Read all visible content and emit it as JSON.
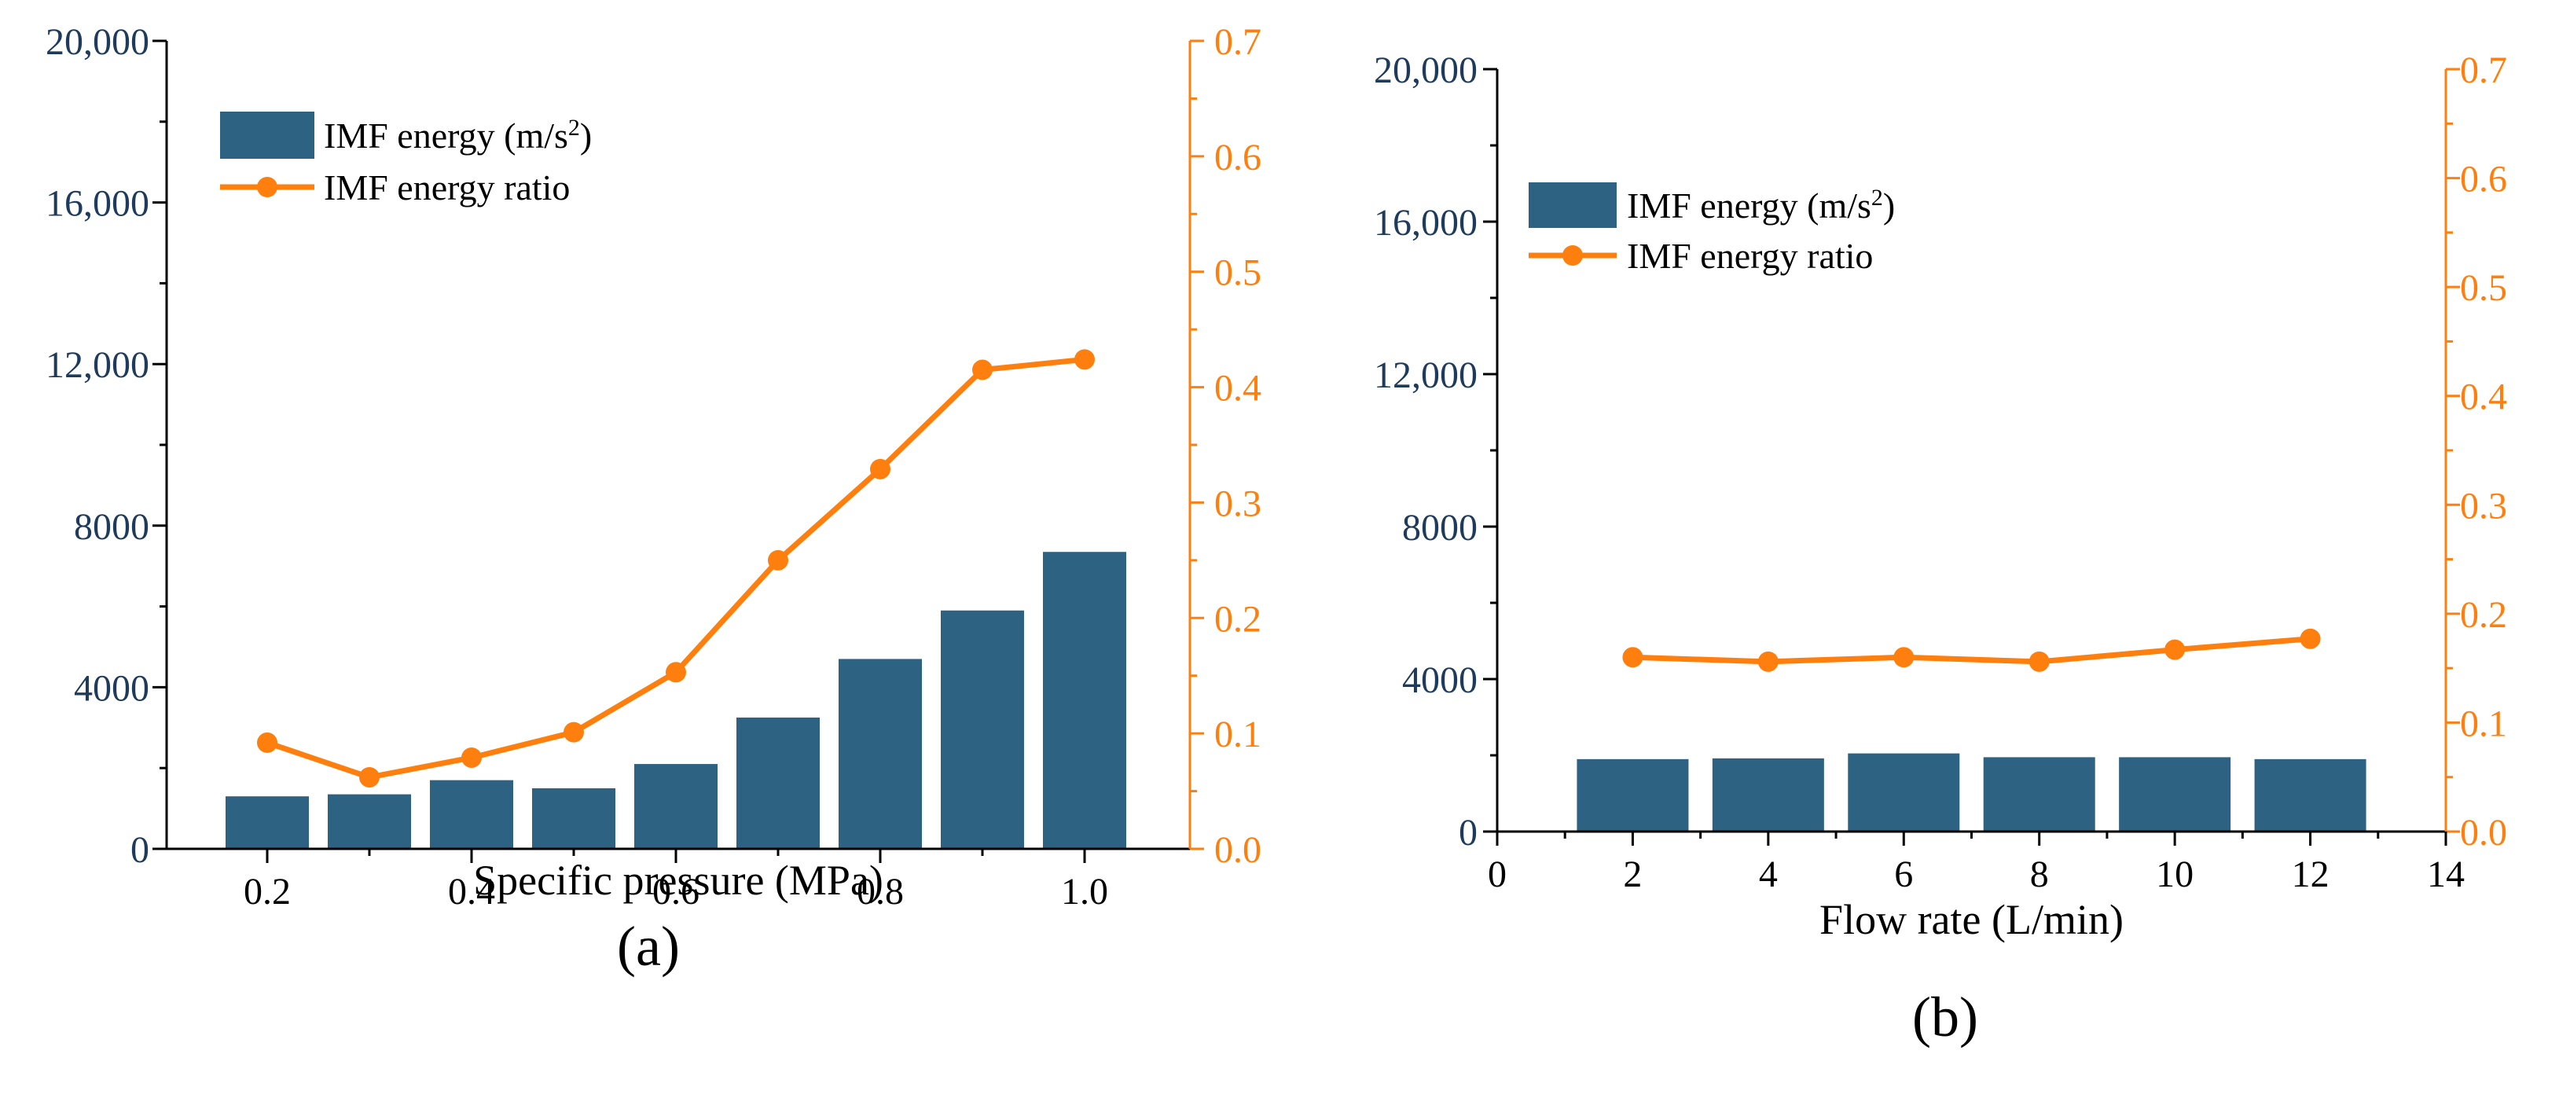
{
  "colors": {
    "bar": "#2e6282",
    "line": "#ff7f0e",
    "left_axis": "#1f3b5c",
    "right_axis": "#ff7f0e",
    "axis": "#000000"
  },
  "chart_data": [
    {
      "panel_label": "(a)",
      "type": "bar+line",
      "xlabel": "Specific pressure (MPa)",
      "x_type": "category",
      "categories": [
        "0.2",
        "0.3",
        "0.4",
        "0.5",
        "0.6",
        "0.7",
        "0.8",
        "0.9",
        "1.0"
      ],
      "x_tick_labels": [
        "0.2",
        "0.4",
        "0.6",
        "0.8",
        "1.0"
      ],
      "ylim_left": [
        0,
        20000
      ],
      "yticks_left": [
        "0",
        "4000",
        "8000",
        "12,000",
        "16,000",
        "20,000"
      ],
      "ylim_right": [
        0,
        0.7
      ],
      "yticks_right": [
        "0.0",
        "0.1",
        "0.2",
        "0.3",
        "0.4",
        "0.5",
        "0.6",
        "0.7"
      ],
      "series": [
        {
          "name": "IMF energy (m/s²)",
          "legend_main": "IMF  energy (m/s",
          "legend_sup": "2",
          "legend_close": ")",
          "kind": "bar",
          "axis": "left",
          "values": [
            1300,
            1350,
            1700,
            1500,
            2100,
            3250,
            4700,
            5900,
            7350
          ]
        },
        {
          "name": "IMF energy ratio",
          "legend_main": "IMF  energy ratio",
          "kind": "line",
          "axis": "right",
          "values": [
            0.092,
            0.062,
            0.079,
            0.101,
            0.153,
            0.25,
            0.329,
            0.415,
            0.424
          ]
        }
      ]
    },
    {
      "panel_label": "(b)",
      "type": "bar+line",
      "xlabel": "Flow rate (L/min)",
      "x_type": "numeric",
      "xlim": [
        0,
        14
      ],
      "x_tick_labels": [
        "0",
        "2",
        "4",
        "6",
        "8",
        "10",
        "12",
        "14"
      ],
      "x": [
        2,
        4,
        6,
        8,
        10,
        12
      ],
      "ylim_left": [
        0,
        20000
      ],
      "yticks_left": [
        "0",
        "4000",
        "8000",
        "12,000",
        "16,000",
        "20,000"
      ],
      "ylim_right": [
        0,
        0.7
      ],
      "yticks_right": [
        "0.0",
        "0.1",
        "0.2",
        "0.3",
        "0.4",
        "0.5",
        "0.6",
        "0.7"
      ],
      "series": [
        {
          "name": "IMF energy (m/s²)",
          "legend_main": "IMF  energy (m/s",
          "legend_sup": "2",
          "legend_close": ")",
          "kind": "bar",
          "axis": "left",
          "values": [
            1900,
            1920,
            2050,
            1950,
            1950,
            1900
          ]
        },
        {
          "name": "IMF energy ratio",
          "legend_main": "IMF  energy ratio",
          "kind": "line",
          "axis": "right",
          "values": [
            0.16,
            0.156,
            0.16,
            0.156,
            0.167,
            0.177
          ]
        }
      ]
    }
  ]
}
